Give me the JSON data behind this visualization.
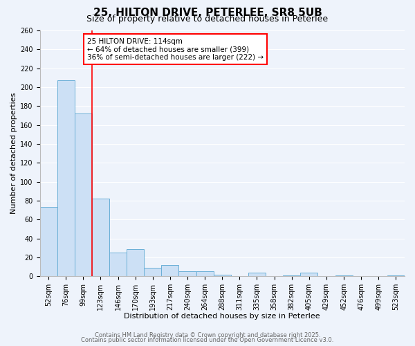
{
  "title": "25, HILTON DRIVE, PETERLEE, SR8 5UB",
  "subtitle": "Size of property relative to detached houses in Peterlee",
  "xlabel": "Distribution of detached houses by size in Peterlee",
  "ylabel": "Number of detached properties",
  "bar_labels": [
    "52sqm",
    "76sqm",
    "99sqm",
    "123sqm",
    "146sqm",
    "170sqm",
    "193sqm",
    "217sqm",
    "240sqm",
    "264sqm",
    "288sqm",
    "311sqm",
    "335sqm",
    "358sqm",
    "382sqm",
    "405sqm",
    "429sqm",
    "452sqm",
    "476sqm",
    "499sqm",
    "523sqm"
  ],
  "bar_values": [
    73,
    207,
    172,
    82,
    25,
    29,
    9,
    12,
    5,
    5,
    2,
    0,
    4,
    0,
    1,
    4,
    0,
    1,
    0,
    0,
    1
  ],
  "bar_color": "#cce0f5",
  "bar_edge_color": "#6aafd6",
  "ylim": [
    0,
    260
  ],
  "yticks": [
    0,
    20,
    40,
    60,
    80,
    100,
    120,
    140,
    160,
    180,
    200,
    220,
    240,
    260
  ],
  "red_line_x": 2.5,
  "annotation_title": "25 HILTON DRIVE: 114sqm",
  "annotation_line1": "← 64% of detached houses are smaller (399)",
  "annotation_line2": "36% of semi-detached houses are larger (222) →",
  "footer1": "Contains HM Land Registry data © Crown copyright and database right 2025.",
  "footer2": "Contains public sector information licensed under the Open Government Licence v3.0.",
  "background_color": "#eef3fb",
  "grid_color": "#ffffff",
  "title_fontsize": 11,
  "subtitle_fontsize": 9,
  "axis_label_fontsize": 8,
  "tick_fontsize": 7,
  "annotation_fontsize": 7.5,
  "footer_fontsize": 6
}
